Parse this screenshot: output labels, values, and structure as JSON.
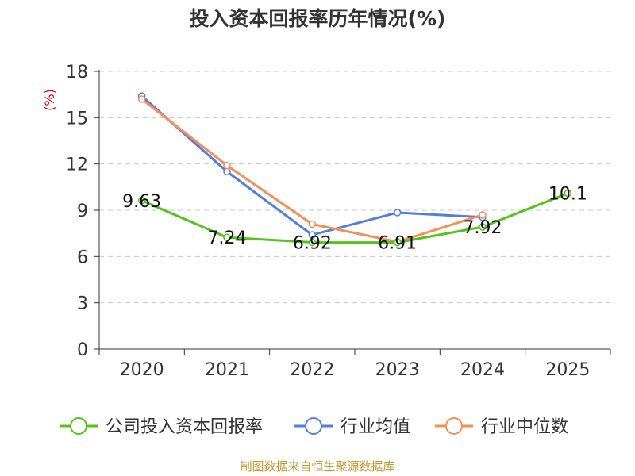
{
  "chart_data": {
    "type": "line",
    "title": "投入资本回报率历年情况(%)",
    "ylabel": "(%)",
    "xlabel": "",
    "ylim": [
      0,
      18
    ],
    "yticks": [
      0,
      3,
      6,
      9,
      12,
      15,
      18
    ],
    "grid": true,
    "legend_position": "bottom",
    "categories": [
      "2020",
      "2021",
      "2022",
      "2023",
      "2024",
      "2025"
    ],
    "series": [
      {
        "name": "公司投入资本回报率",
        "color": "#52c41a",
        "values": [
          9.63,
          7.24,
          6.92,
          6.91,
          7.92,
          10.1
        ],
        "labels": [
          "9.63",
          "7.24",
          "6.92",
          "6.91",
          "7.92",
          "10.1"
        ]
      },
      {
        "name": "行业均值",
        "color": "#4f7fe0",
        "values": [
          16.4,
          11.5,
          7.4,
          8.85,
          8.55,
          null
        ]
      },
      {
        "name": "行业中位数",
        "color": "#f58f5a",
        "values": [
          16.2,
          11.9,
          8.1,
          6.95,
          8.7,
          null
        ]
      }
    ]
  },
  "source": "制图数据来自恒生聚源数据库"
}
